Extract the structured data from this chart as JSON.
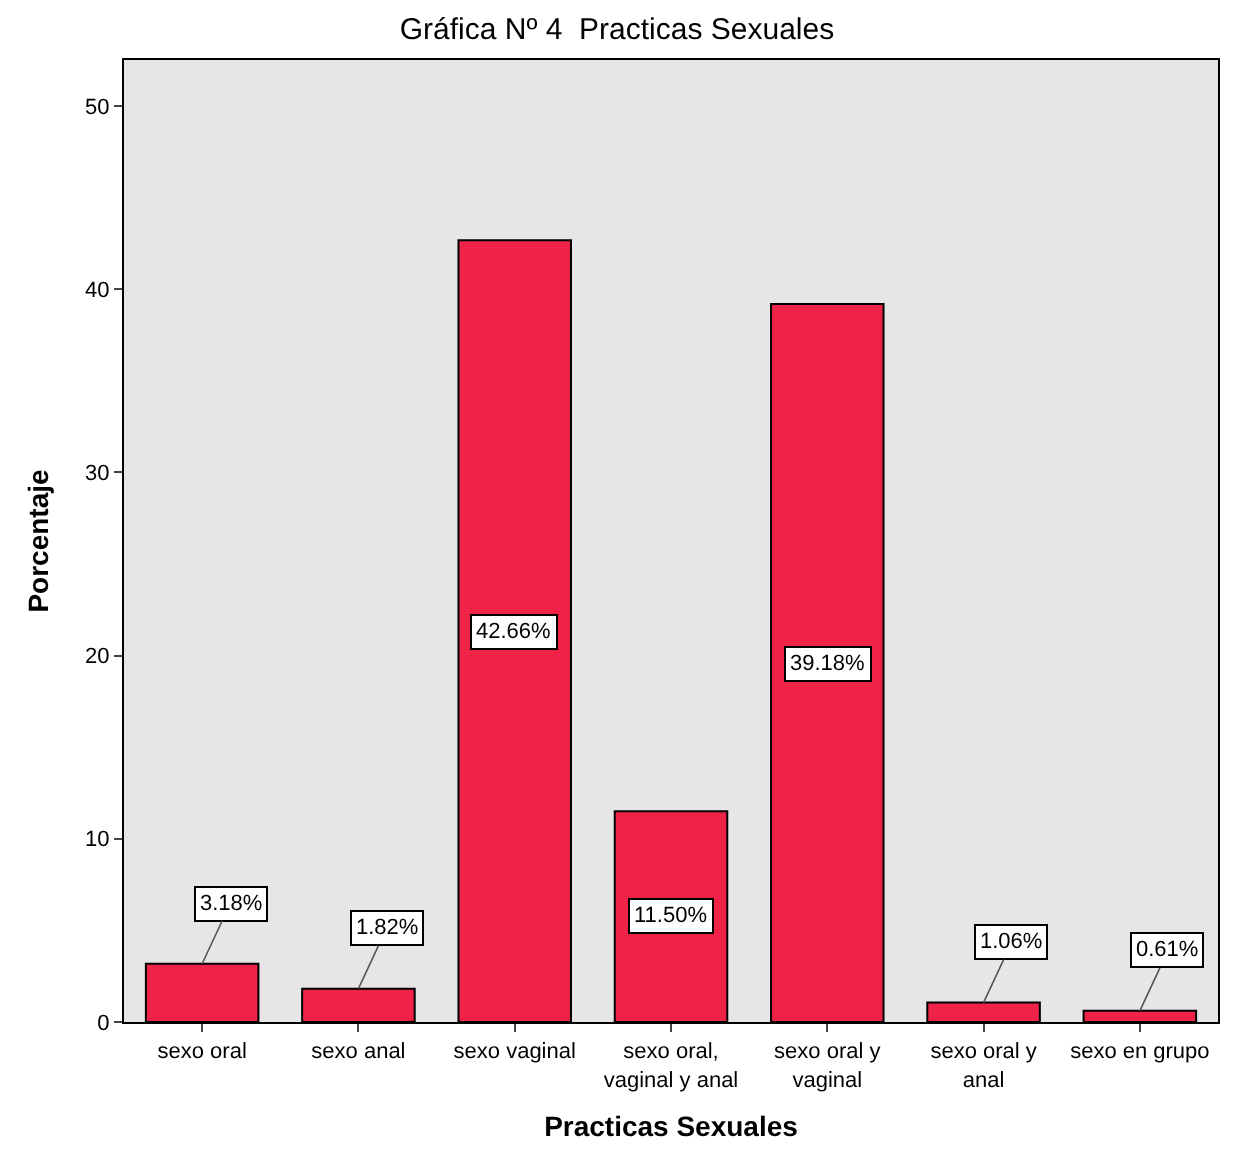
{
  "chart_data": {
    "type": "bar",
    "title": "Gráfica Nº 4  Practicas Sexuales",
    "xlabel": "Practicas Sexuales",
    "ylabel": "Porcentaje",
    "categories": [
      "sexo oral",
      "sexo anal",
      "sexo vaginal",
      "sexo oral, vaginal y anal",
      "sexo oral y vaginal",
      "sexo oral y anal",
      "sexo en grupo"
    ],
    "values": [
      3.18,
      1.82,
      42.66,
      11.5,
      39.18,
      1.06,
      0.61
    ],
    "value_labels": [
      "3.18%",
      "1.82%",
      "42.66%",
      "11.50%",
      "39.18%",
      "1.06%",
      "0.61%"
    ],
    "color": "#ee2347",
    "ylim": [
      0,
      52.5
    ],
    "yticks": [
      0,
      10,
      20,
      30,
      40,
      50
    ],
    "grid": false,
    "legend": false
  }
}
